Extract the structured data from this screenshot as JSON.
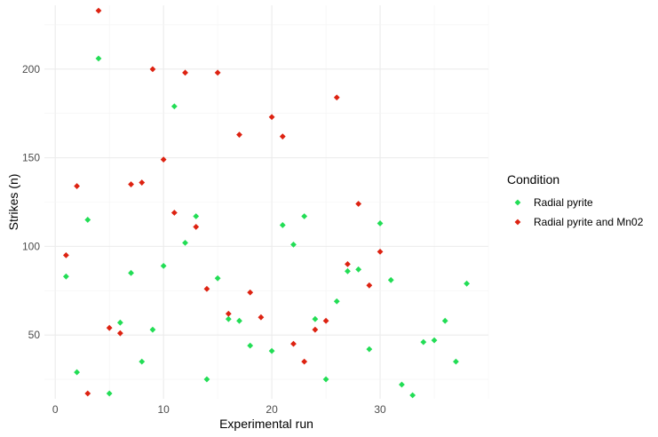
{
  "chart_data": {
    "type": "scatter",
    "xlabel": "Experimental run",
    "ylabel": "Strikes (n)",
    "xlim": [
      -1,
      40
    ],
    "ylim": [
      14,
      236
    ],
    "x_ticks": [
      0,
      10,
      20,
      30
    ],
    "y_ticks": [
      50,
      100,
      150,
      200
    ],
    "grid": true,
    "legend": {
      "title": "Condition",
      "position": "right"
    },
    "series": [
      {
        "name": "Radial pyrite",
        "color": "#22dd55",
        "points": [
          [
            1,
            83
          ],
          [
            2,
            29
          ],
          [
            3,
            115
          ],
          [
            4,
            206
          ],
          [
            5,
            17
          ],
          [
            6,
            57
          ],
          [
            7,
            85
          ],
          [
            8,
            35
          ],
          [
            9,
            53
          ],
          [
            10,
            89
          ],
          [
            11,
            179
          ],
          [
            12,
            102
          ],
          [
            13,
            117
          ],
          [
            14,
            25
          ],
          [
            15,
            82
          ],
          [
            16,
            59
          ],
          [
            17,
            58
          ],
          [
            18,
            44
          ],
          [
            20,
            41
          ],
          [
            21,
            112
          ],
          [
            22,
            101
          ],
          [
            23,
            117
          ],
          [
            24,
            59
          ],
          [
            25,
            25
          ],
          [
            26,
            69
          ],
          [
            27,
            86
          ],
          [
            28,
            87
          ],
          [
            29,
            42
          ],
          [
            30,
            113
          ],
          [
            31,
            81
          ],
          [
            32,
            22
          ],
          [
            33,
            16
          ],
          [
            34,
            46
          ],
          [
            35,
            47
          ],
          [
            36,
            58
          ],
          [
            37,
            35
          ],
          [
            38,
            79
          ]
        ]
      },
      {
        "name": "Radial pyrite and Mn02",
        "color": "#dd2211",
        "points": [
          [
            1,
            95
          ],
          [
            2,
            134
          ],
          [
            3,
            17
          ],
          [
            4,
            233
          ],
          [
            5,
            54
          ],
          [
            6,
            51
          ],
          [
            7,
            135
          ],
          [
            8,
            136
          ],
          [
            9,
            200
          ],
          [
            10,
            149
          ],
          [
            11,
            119
          ],
          [
            12,
            198
          ],
          [
            13,
            111
          ],
          [
            14,
            76
          ],
          [
            15,
            198
          ],
          [
            16,
            62
          ],
          [
            17,
            163
          ],
          [
            18,
            74
          ],
          [
            19,
            60
          ],
          [
            20,
            173
          ],
          [
            21,
            162
          ],
          [
            22,
            45
          ],
          [
            23,
            35
          ],
          [
            24,
            53
          ],
          [
            25,
            58
          ],
          [
            26,
            184
          ],
          [
            27,
            90
          ],
          [
            28,
            124
          ],
          [
            29,
            78
          ],
          [
            30,
            97
          ]
        ]
      }
    ]
  }
}
